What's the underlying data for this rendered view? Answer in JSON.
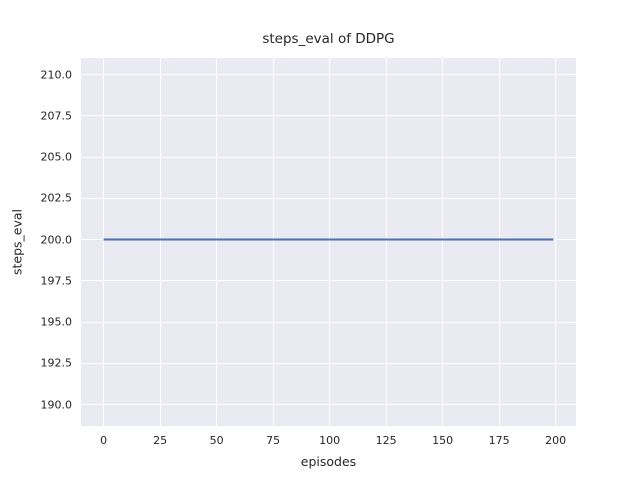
{
  "chart_data": {
    "type": "line",
    "title": "steps_eval of DDPG",
    "xlabel": "episodes",
    "ylabel": "steps_eval",
    "x_ticks": [
      0,
      25,
      50,
      75,
      100,
      125,
      150,
      175,
      200
    ],
    "x_tick_labels": [
      "0",
      "25",
      "50",
      "75",
      "100",
      "125",
      "150",
      "175",
      "200"
    ],
    "y_ticks": [
      190,
      192.5,
      195,
      197.5,
      200,
      202.5,
      205,
      207.5,
      210
    ],
    "y_tick_labels": [
      "190.0",
      "192.5",
      "195.0",
      "197.5",
      "200.0",
      "202.5",
      "205.0",
      "207.5",
      "210.0"
    ],
    "xlim": [
      -10,
      209
    ],
    "ylim": [
      188.7,
      211.0
    ],
    "grid": true,
    "legend": "none",
    "plot_bg_color": "#eaeaf2",
    "grid_color": "#ffffff",
    "text_color": "#262626",
    "series": [
      {
        "name": "steps_eval",
        "color": "#4c72b0",
        "x": [
          0,
          199
        ],
        "y": [
          200,
          200
        ]
      }
    ]
  }
}
